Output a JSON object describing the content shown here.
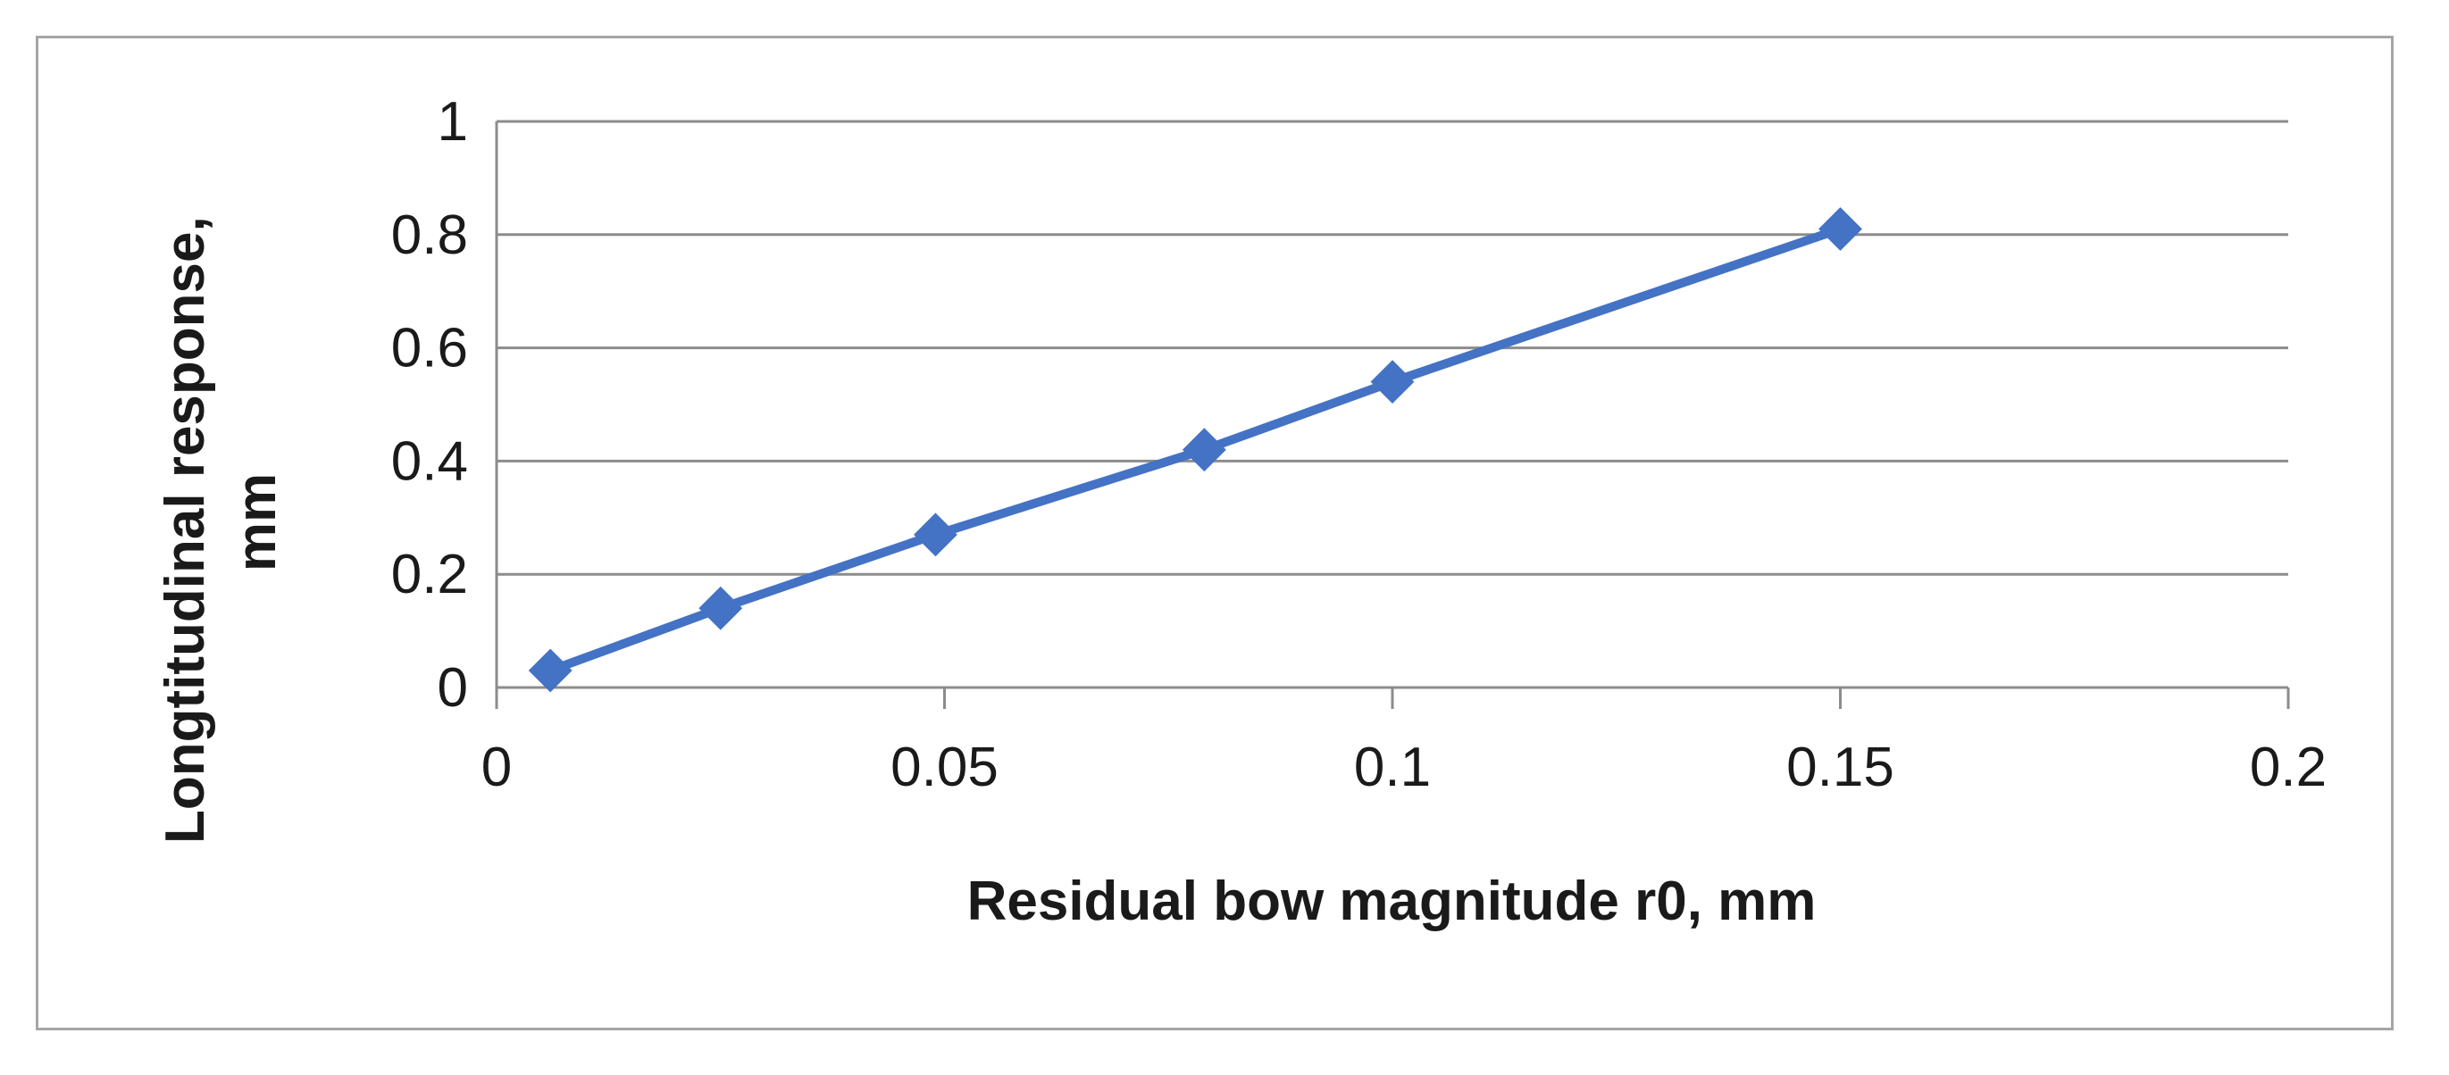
{
  "chart_data": {
    "type": "line",
    "title": "",
    "xlabel": "Residual bow magnitude r0, mm",
    "ylabel_lines": [
      "Longtitudinal response,",
      "mm"
    ],
    "xlim": [
      0,
      0.2
    ],
    "ylim": [
      0,
      1
    ],
    "x_ticks": [
      0,
      0.05,
      0.1,
      0.15,
      0.2
    ],
    "x_tick_labels": [
      "0",
      "0.05",
      "0.1",
      "0.15",
      "0.2"
    ],
    "y_ticks": [
      0,
      0.2,
      0.4,
      0.6,
      0.8,
      1
    ],
    "y_tick_labels": [
      "0",
      "0.2",
      "0.4",
      "0.6",
      "0.8",
      "1"
    ],
    "grid": "horizontal",
    "legend": "none",
    "series": [
      {
        "color": "#4472c4",
        "marker": "diamond",
        "x": [
          0.006,
          0.025,
          0.049,
          0.079,
          0.1,
          0.15
        ],
        "y": [
          0.03,
          0.14,
          0.27,
          0.42,
          0.54,
          0.81
        ]
      }
    ]
  }
}
